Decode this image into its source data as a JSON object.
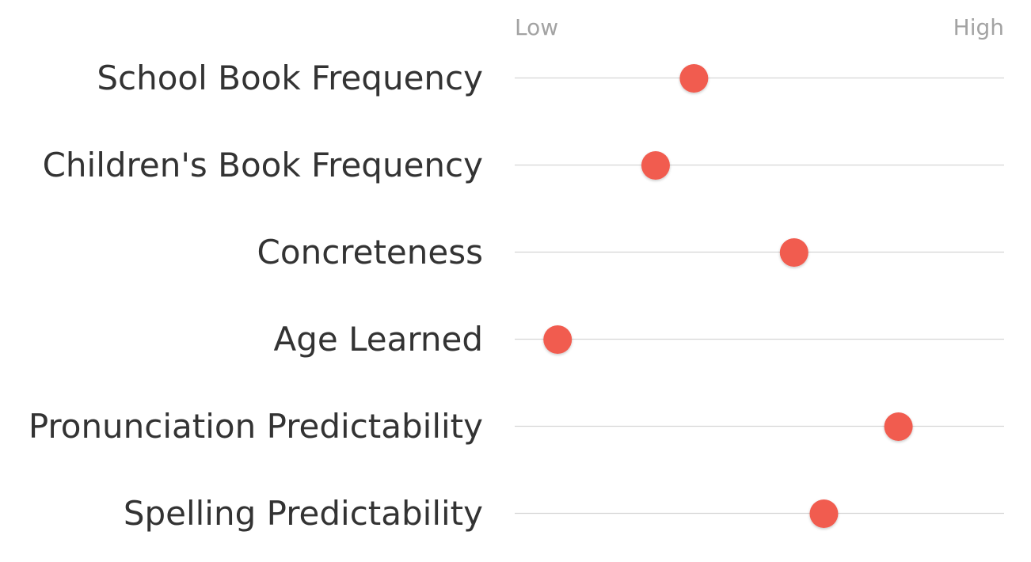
{
  "chart_data": {
    "type": "scatter",
    "scale_low_label": "Low",
    "scale_high_label": "High",
    "xlim": [
      0,
      100
    ],
    "dot_color": "#f15b4f",
    "categories": [
      "School Book Frequency",
      "Children's Book Frequency",
      "Concreteness",
      "Age Learned",
      "Pronunciation Predictability",
      "Spelling Predictability"
    ],
    "values": [
      36.5,
      27.5,
      60,
      4.5,
      84.5,
      67
    ]
  }
}
